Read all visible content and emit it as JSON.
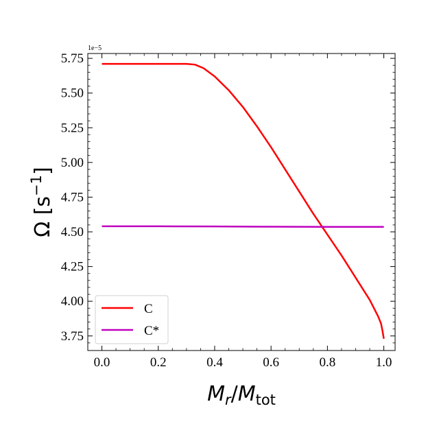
{
  "chart_data": {
    "type": "line",
    "title": "",
    "xlabel": {
      "base": "M",
      "base_sub": "r",
      "sep": "/",
      "base2": "M",
      "base2_sub": "tot"
    },
    "ylabel": {
      "text": "Ω [s",
      "sup": "−1",
      "close": "]"
    },
    "y_offset_label": "1e−5",
    "xlim": [
      -0.05,
      1.04
    ],
    "ylim": [
      3.645,
      5.785
    ],
    "xticks": [
      0.0,
      0.2,
      0.4,
      0.6,
      0.8,
      1.0
    ],
    "xtick_labels": [
      "0.0",
      "0.2",
      "0.4",
      "0.6",
      "0.8",
      "1.0"
    ],
    "yticks": [
      3.75,
      4.0,
      4.25,
      4.5,
      4.75,
      5.0,
      5.25,
      5.5,
      5.75
    ],
    "ytick_labels": [
      "3.75",
      "4.00",
      "4.25",
      "4.50",
      "4.75",
      "5.00",
      "5.25",
      "5.50",
      "5.75"
    ],
    "grid": false,
    "legend_position": "lower-left",
    "series": [
      {
        "name": "C",
        "color": "#ff0000",
        "x": [
          0.0,
          0.1,
          0.2,
          0.3,
          0.33,
          0.36,
          0.4,
          0.45,
          0.5,
          0.55,
          0.6,
          0.65,
          0.7,
          0.75,
          0.8,
          0.85,
          0.9,
          0.95,
          0.98,
          0.99,
          0.995,
          1.0
        ],
        "y": [
          5.71,
          5.71,
          5.71,
          5.71,
          5.705,
          5.68,
          5.62,
          5.52,
          5.4,
          5.26,
          5.11,
          4.95,
          4.79,
          4.63,
          4.48,
          4.33,
          4.17,
          4.01,
          3.89,
          3.84,
          3.79,
          3.73
        ]
      },
      {
        "name": "C*",
        "color": "#bf00bf",
        "x": [
          0.0,
          0.2,
          0.4,
          0.6,
          0.8,
          1.0
        ],
        "y": [
          4.54,
          4.54,
          4.539,
          4.537,
          4.536,
          4.536
        ]
      }
    ]
  }
}
